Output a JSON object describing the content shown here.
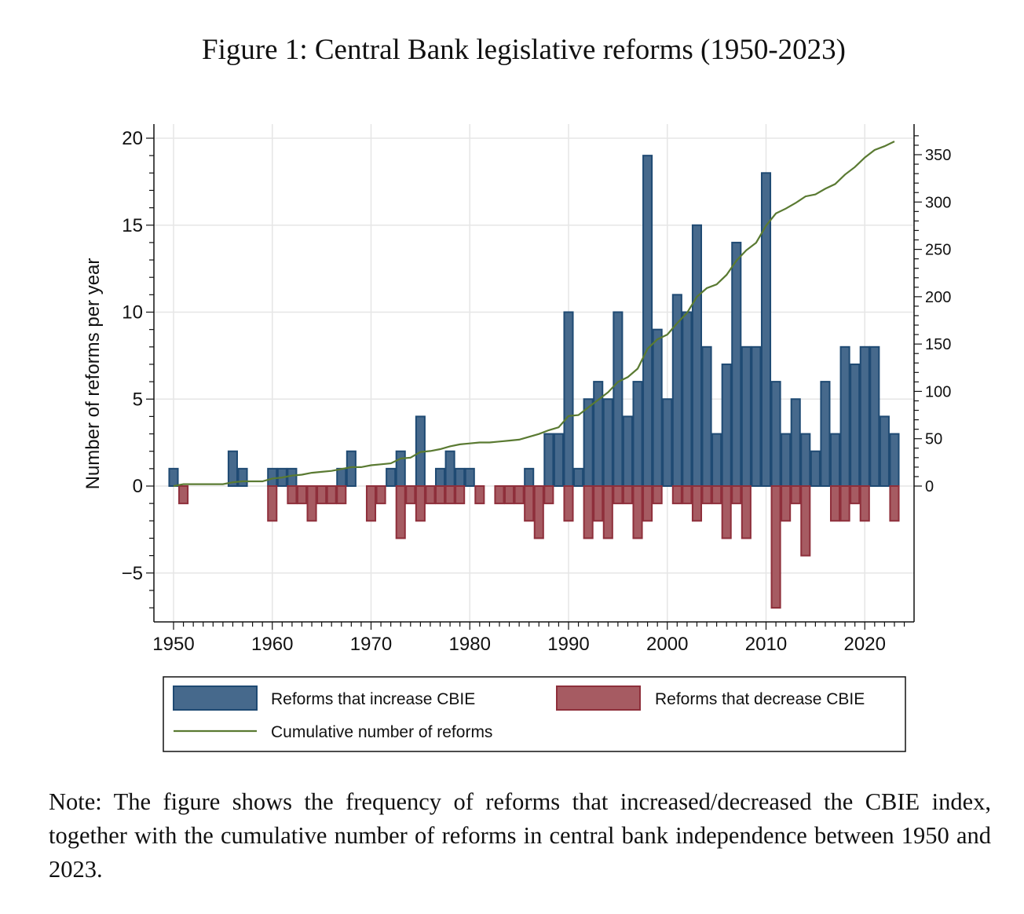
{
  "figure": {
    "title": "Figure 1: Central Bank legislative reforms (1950-2023)",
    "note": "Note: The figure shows the frequency of reforms that increased/decreased the CBIE index, together with the cumulative number of reforms in central bank independence between 1950 and 2023."
  },
  "chart_data": {
    "type": "bar",
    "title": "Figure 1: Central Bank legislative reforms (1950-2023)",
    "xlabel": "",
    "ylabel": "Number of reforms per year",
    "ylabel_right": "",
    "xlim": [
      1948,
      2025
    ],
    "ylim": [
      -7.8,
      20.8
    ],
    "ylim_right": [
      -142,
      382
    ],
    "x_ticks": [
      1950,
      1960,
      1970,
      1980,
      1990,
      2000,
      2010,
      2020
    ],
    "y_ticks": [
      -5,
      0,
      5,
      10,
      15,
      20
    ],
    "y_ticks_right": [
      0,
      50,
      100,
      150,
      200,
      250,
      300,
      350
    ],
    "grid": true,
    "legend_position": "bottom",
    "colors": {
      "increase": "#46698c",
      "increase_edge": "#1f4a73",
      "decrease": "#a65b62",
      "decrease_edge": "#8e2f3b",
      "cumulative": "#5a7a32"
    },
    "years": [
      1950,
      1951,
      1952,
      1953,
      1954,
      1955,
      1956,
      1957,
      1958,
      1959,
      1960,
      1961,
      1962,
      1963,
      1964,
      1965,
      1966,
      1967,
      1968,
      1969,
      1970,
      1971,
      1972,
      1973,
      1974,
      1975,
      1976,
      1977,
      1978,
      1979,
      1980,
      1981,
      1982,
      1983,
      1984,
      1985,
      1986,
      1987,
      1988,
      1989,
      1990,
      1991,
      1992,
      1993,
      1994,
      1995,
      1996,
      1997,
      1998,
      1999,
      2000,
      2001,
      2002,
      2003,
      2004,
      2005,
      2006,
      2007,
      2008,
      2009,
      2010,
      2011,
      2012,
      2013,
      2014,
      2015,
      2016,
      2017,
      2018,
      2019,
      2020,
      2021,
      2022,
      2023
    ],
    "series": [
      {
        "name": "Reforms that increase CBIE",
        "axis": "left",
        "kind": "bar",
        "values": [
          1,
          0,
          0,
          0,
          0,
          0,
          2,
          1,
          0,
          0,
          1,
          1,
          1,
          0,
          0,
          0,
          0,
          1,
          2,
          0,
          0,
          0,
          1,
          2,
          0,
          4,
          0,
          1,
          2,
          1,
          1,
          0,
          0,
          0,
          0,
          0,
          1,
          0,
          3,
          3,
          10,
          1,
          5,
          6,
          5,
          10,
          4,
          6,
          19,
          9,
          5,
          11,
          10,
          15,
          8,
          3,
          7,
          14,
          8,
          8,
          18,
          6,
          3,
          5,
          3,
          2,
          6,
          3,
          8,
          7,
          8,
          8,
          4,
          3
        ]
      },
      {
        "name": "Reforms that decrease CBIE",
        "axis": "left",
        "kind": "bar",
        "values": [
          0,
          -1,
          0,
          0,
          0,
          0,
          0,
          0,
          0,
          0,
          -2,
          0,
          -1,
          -1,
          -2,
          -1,
          -1,
          -1,
          0,
          0,
          -2,
          -1,
          0,
          -3,
          -1,
          -2,
          -1,
          -1,
          -1,
          -1,
          0,
          -1,
          0,
          -1,
          -1,
          -1,
          -2,
          -3,
          -1,
          0,
          -2,
          0,
          -3,
          -2,
          -3,
          -1,
          -1,
          -3,
          -2,
          -1,
          0,
          -1,
          -1,
          -2,
          -1,
          -1,
          -3,
          -1,
          -3,
          0,
          0,
          -7,
          -2,
          -1,
          -4,
          0,
          0,
          -2,
          -2,
          -1,
          -2,
          0,
          0,
          -2
        ]
      },
      {
        "name": "Cumulative number of reforms",
        "axis": "right",
        "kind": "line",
        "values": [
          0,
          2,
          2,
          2,
          2,
          2,
          4,
          5,
          5,
          5,
          8,
          9,
          11,
          12,
          14,
          15,
          16,
          18,
          20,
          20,
          22,
          23,
          24,
          29,
          30,
          36,
          37,
          39,
          42,
          44,
          45,
          46,
          46,
          47,
          48,
          49,
          52,
          55,
          59,
          62,
          74,
          75,
          83,
          91,
          99,
          110,
          115,
          124,
          145,
          155,
          160,
          172,
          183,
          200,
          209,
          213,
          223,
          238,
          249,
          257,
          275,
          288,
          293,
          299,
          306,
          308,
          314,
          319,
          329,
          337,
          347,
          355,
          359,
          364
        ]
      }
    ]
  }
}
